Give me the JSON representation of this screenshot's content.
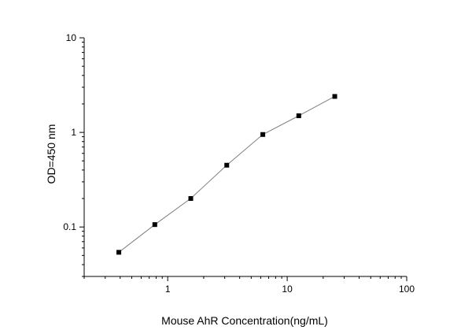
{
  "chart_data": {
    "type": "scatter",
    "title": "",
    "xlabel": "Mouse AhR Concentration(ng/mL)",
    "ylabel": "OD=450 nm",
    "xscale": "log",
    "yscale": "log",
    "xlim": [
      0.2,
      100
    ],
    "ylim": [
      0.03,
      10
    ],
    "xticks": [
      {
        "value": 1,
        "label": "1"
      },
      {
        "value": 10,
        "label": "10"
      },
      {
        "value": 100,
        "label": "100"
      }
    ],
    "yticks": [
      {
        "value": 0.1,
        "label": "0.1"
      },
      {
        "value": 1,
        "label": "1"
      },
      {
        "value": 10,
        "label": "10"
      }
    ],
    "grid": false,
    "legend": "none",
    "colors": {
      "line": "#7f7f7f",
      "marker": "#000000",
      "axis": "#000000"
    },
    "series": [
      {
        "x": [
          0.39,
          0.78,
          1.56,
          3.12,
          6.25,
          12.5,
          25
        ],
        "y": [
          0.054,
          0.106,
          0.2,
          0.45,
          0.95,
          1.5,
          2.4
        ]
      }
    ]
  }
}
